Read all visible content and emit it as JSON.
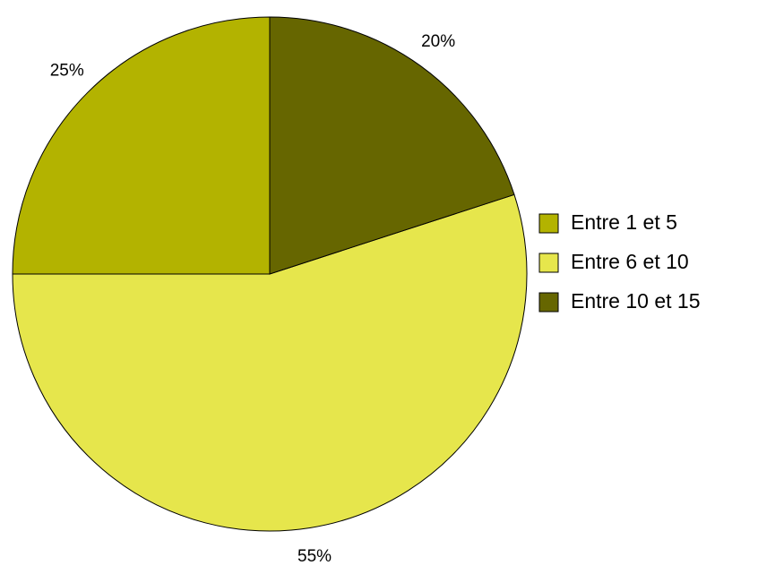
{
  "chart_data": {
    "type": "pie",
    "categories": [
      "Entre 1 et 5",
      "Entre 6 et 10",
      "Entre 10 et 15"
    ],
    "values": [
      25,
      55,
      20
    ],
    "value_labels": [
      "25%",
      "55%",
      "20%"
    ],
    "colors": [
      "#b3b300",
      "#e6e64c",
      "#666600"
    ],
    "legend": "right"
  }
}
